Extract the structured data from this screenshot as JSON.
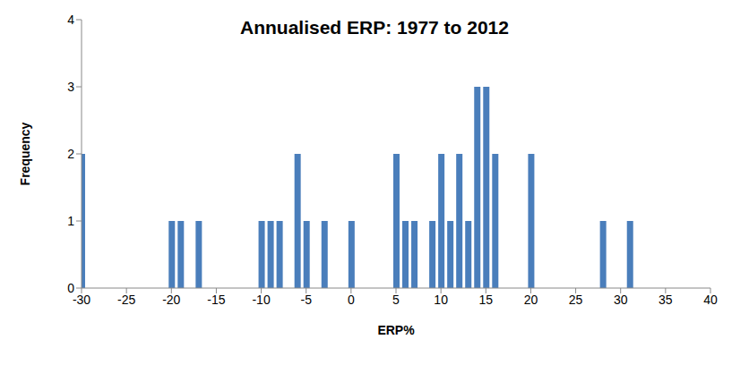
{
  "chart_data": {
    "type": "bar",
    "title": "Annualised ERP: 1977 to 2012",
    "x_label": "ERP%",
    "y_label": "Frequency",
    "x": [
      -30,
      -20,
      -19,
      -17,
      -10,
      -9,
      -8,
      -6,
      -5,
      -3,
      0,
      5,
      6,
      7,
      9,
      10,
      11,
      12,
      13,
      14,
      15,
      16,
      20,
      28,
      31
    ],
    "values": [
      2,
      1,
      1,
      1,
      1,
      1,
      1,
      2,
      1,
      1,
      1,
      2,
      1,
      1,
      1,
      2,
      1,
      2,
      1,
      3,
      3,
      2,
      2,
      1,
      1
    ],
    "color": "#4A7EBB",
    "xlim": [
      -30,
      40
    ],
    "xticks": [
      -30,
      -25,
      -20,
      -15,
      -10,
      -5,
      0,
      5,
      10,
      15,
      20,
      25,
      30,
      35,
      40
    ],
    "ylim": [
      0,
      4
    ],
    "yticks": [
      0,
      1,
      2,
      3,
      4
    ],
    "grid": false
  }
}
